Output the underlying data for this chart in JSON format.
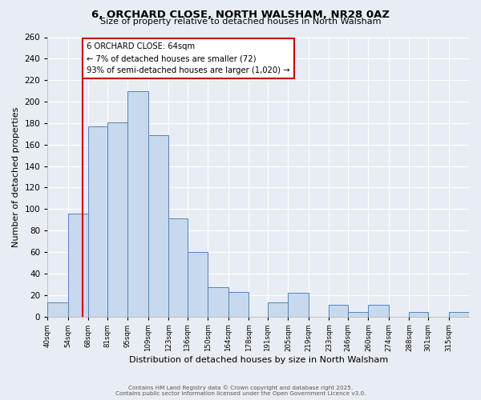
{
  "title": "6, ORCHARD CLOSE, NORTH WALSHAM, NR28 0AZ",
  "subtitle": "Size of property relative to detached houses in North Walsham",
  "xlabel": "Distribution of detached houses by size in North Walsham",
  "ylabel": "Number of detached properties",
  "bins": [
    40,
    54,
    68,
    81,
    95,
    109,
    123,
    136,
    150,
    164,
    178,
    191,
    205,
    219,
    233,
    246,
    260,
    274,
    288,
    301,
    315
  ],
  "values": [
    13,
    96,
    177,
    181,
    210,
    169,
    91,
    60,
    27,
    23,
    0,
    13,
    22,
    0,
    11,
    4,
    11,
    0,
    4,
    0,
    4
  ],
  "bar_fill_color": "#c8d9ed",
  "bar_edge_color": "#5085bc",
  "bg_color": "#e8edf4",
  "grid_color": "#ffffff",
  "vline_x": 64,
  "vline_color": "#cc0000",
  "annotation_line1": "6 ORCHARD CLOSE: 64sqm",
  "annotation_line2": "← 7% of detached houses are smaller (72)",
  "annotation_line3": "93% of semi-detached houses are larger (1,020) →",
  "annotation_box_edge_color": "#cc0000",
  "annotation_box_bg": "#ffffff",
  "ylim": [
    0,
    260
  ],
  "yticks": [
    0,
    20,
    40,
    60,
    80,
    100,
    120,
    140,
    160,
    180,
    200,
    220,
    240,
    260
  ],
  "tick_labels": [
    "40sqm",
    "54sqm",
    "68sqm",
    "81sqm",
    "95sqm",
    "109sqm",
    "123sqm",
    "136sqm",
    "150sqm",
    "164sqm",
    "178sqm",
    "191sqm",
    "205sqm",
    "219sqm",
    "233sqm",
    "246sqm",
    "260sqm",
    "274sqm",
    "288sqm",
    "301sqm",
    "315sqm"
  ],
  "footer1": "Contains HM Land Registry data © Crown copyright and database right 2025.",
  "footer2": "Contains public sector information licensed under the Open Government Licence v3.0."
}
